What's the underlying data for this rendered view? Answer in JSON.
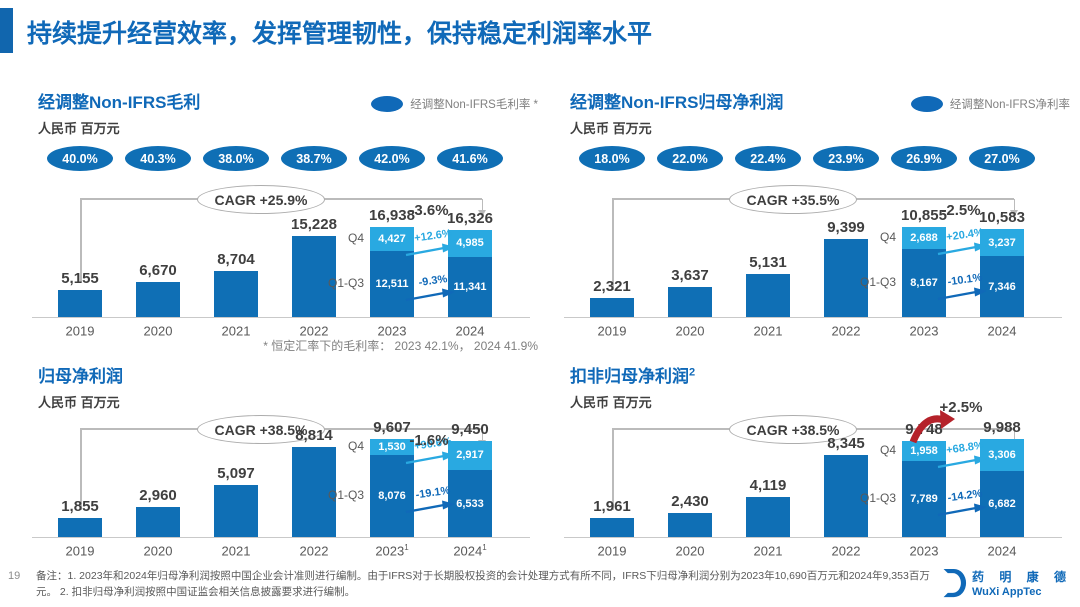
{
  "header": {
    "title": "持续提升经营效率，发挥管理韧性，保持稳定利润率水平"
  },
  "colors": {
    "accent_blue": "#1166AE",
    "title_blue": "#1069B8",
    "bar_dark_blue": "#0F6FB5",
    "bar_light_blue": "#29A9E1",
    "grey_text": "#595959",
    "red_arrow": "#B5222A"
  },
  "footer": {
    "page_number": "19",
    "note": "备注：1. 2023年和2024年归母净利润按照中国企业会计准则进行编制。由于IFRS对于长期股权投资的会计处理方式有所不同，IFRS下归母净利润分别为2023年10,690百万元和2024年9,353百万元。 2. 扣非归母净利润按照中国证监会相关信息披露要求进行编制。",
    "logo_cn": "药 明 康 德",
    "logo_en": "WuXi AppTec"
  },
  "chart_data": [
    {
      "type": "bar",
      "title": "经调整Non-IFRS毛利",
      "title_sup": "",
      "unit": "人民币 百万元",
      "legend": "经调整Non-IFRS毛利率 *",
      "margin_ovals": [
        "40.0%",
        "40.3%",
        "38.0%",
        "38.7%",
        "42.0%",
        "41.6%"
      ],
      "cagr": "CAGR +25.9%",
      "total_change": "-3.6%",
      "red_arrow": false,
      "categories": [
        "2019",
        "2020",
        "2021",
        "2022",
        "2023",
        "2024"
      ],
      "category_sups": [
        "",
        "",
        "",
        "",
        "",
        ""
      ],
      "values": [
        5155,
        6670,
        8704,
        15228,
        16938,
        16326
      ],
      "q4_label": "Q4",
      "q13_label": "Q1-Q3",
      "stacked": {
        "4": {
          "q4": 4427,
          "q13": 12511
        },
        "5": {
          "q4": 4985,
          "q13": 11341
        }
      },
      "q4_change": "+12.6%",
      "q13_change": "-9.3%",
      "footnote": "* 恒定汇率下的毛利率： 2023 42.1%， 2024 41.9%"
    },
    {
      "type": "bar",
      "title": "经调整Non-IFRS归母净利润",
      "title_sup": "",
      "unit": "人民币 百万元",
      "legend": "经调整Non-IFRS净利率",
      "margin_ovals": [
        "18.0%",
        "22.0%",
        "22.4%",
        "23.9%",
        "26.9%",
        "27.0%"
      ],
      "cagr": "CAGR +35.5%",
      "total_change": "-2.5%",
      "red_arrow": false,
      "categories": [
        "2019",
        "2020",
        "2021",
        "2022",
        "2023",
        "2024"
      ],
      "category_sups": [
        "",
        "",
        "",
        "",
        "",
        ""
      ],
      "values": [
        2321,
        3637,
        5131,
        9399,
        10855,
        10583
      ],
      "q4_label": "Q4",
      "q13_label": "Q1-Q3",
      "stacked": {
        "4": {
          "q4": 2688,
          "q13": 8167
        },
        "5": {
          "q4": 3237,
          "q13": 7346
        }
      },
      "q4_change": "+20.4%",
      "q13_change": "-10.1%",
      "footnote": ""
    },
    {
      "type": "bar",
      "title": "归母净利润",
      "title_sup": "",
      "unit": "人民币 百万元",
      "legend": "",
      "margin_ovals": null,
      "cagr": "CAGR +38.5%",
      "total_change": "-1.6%",
      "red_arrow": false,
      "categories": [
        "2019",
        "2020",
        "2021",
        "2022",
        "2023",
        "2024"
      ],
      "category_sups": [
        "",
        "",
        "",
        "",
        "1",
        "1"
      ],
      "values": [
        1855,
        2960,
        5097,
        8814,
        9607,
        9450
      ],
      "q4_label": "Q4",
      "q13_label": "Q1-Q3",
      "stacked": {
        "4": {
          "q4": 1530,
          "q13": 8076
        },
        "5": {
          "q4": 2917,
          "q13": 6533
        }
      },
      "q4_change": "+90.6%",
      "q13_change": "-19.1%",
      "footnote": ""
    },
    {
      "type": "bar",
      "title": "扣非归母净利润",
      "title_sup": "2",
      "unit": "人民币 百万元",
      "legend": "",
      "margin_ovals": null,
      "cagr": "CAGR +38.5%",
      "total_change": "+2.5%",
      "red_arrow": true,
      "categories": [
        "2019",
        "2020",
        "2021",
        "2022",
        "2023",
        "2024"
      ],
      "category_sups": [
        "",
        "",
        "",
        "",
        "",
        ""
      ],
      "values": [
        1961,
        2430,
        4119,
        8345,
        9748,
        9988
      ],
      "q4_label": "Q4",
      "q13_label": "Q1-Q3",
      "stacked": {
        "4": {
          "q4": 1958,
          "q13": 7789
        },
        "5": {
          "q4": 3306,
          "q13": 6682
        }
      },
      "q4_change": "+68.8%",
      "q13_change": "-14.2%",
      "footnote": ""
    }
  ]
}
